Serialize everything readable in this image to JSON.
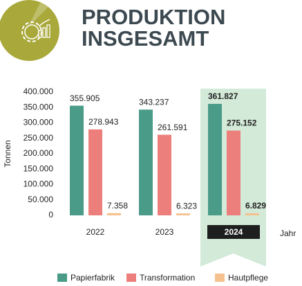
{
  "chart_data": {
    "type": "bar",
    "title_lines": [
      "PRODUKTION",
      "INSGESAMT"
    ],
    "ylabel": "Tonnen",
    "xlabel": "Jahr",
    "categories": [
      "2022",
      "2023",
      "2024"
    ],
    "highlight_category": 2,
    "series": [
      {
        "name": "Papierfabrik",
        "color": "#4a9c89",
        "values": [
          355905,
          343237,
          361827
        ],
        "value_labels": [
          "355.905",
          "343.237",
          "361.827"
        ]
      },
      {
        "name": "Transformation",
        "color": "#ec7f7b",
        "values": [
          278943,
          261591,
          275152
        ],
        "value_labels": [
          "278.943",
          "261.591",
          "275.152"
        ]
      },
      {
        "name": "Hautpflege",
        "color": "#f4c18f",
        "values": [
          7358,
          6323,
          6829
        ],
        "value_labels": [
          "7.358",
          "6.323",
          "6.829"
        ]
      }
    ],
    "ylim": [
      0,
      400000
    ],
    "yticks": [
      0,
      {
        "value": 50000,
        "label": "50.000"
      },
      {
        "value": 100000,
        "label": "100.000"
      },
      {
        "value": 150000,
        "label": "150.000"
      },
      {
        "value": 200000,
        "label": "200.000"
      },
      {
        "value": 250000,
        "label": "250.000"
      },
      {
        "value": 300000,
        "label": "300.000"
      },
      {
        "value": 350000,
        "label": "350.000"
      },
      {
        "value": 400000,
        "label": "400.000"
      }
    ]
  }
}
